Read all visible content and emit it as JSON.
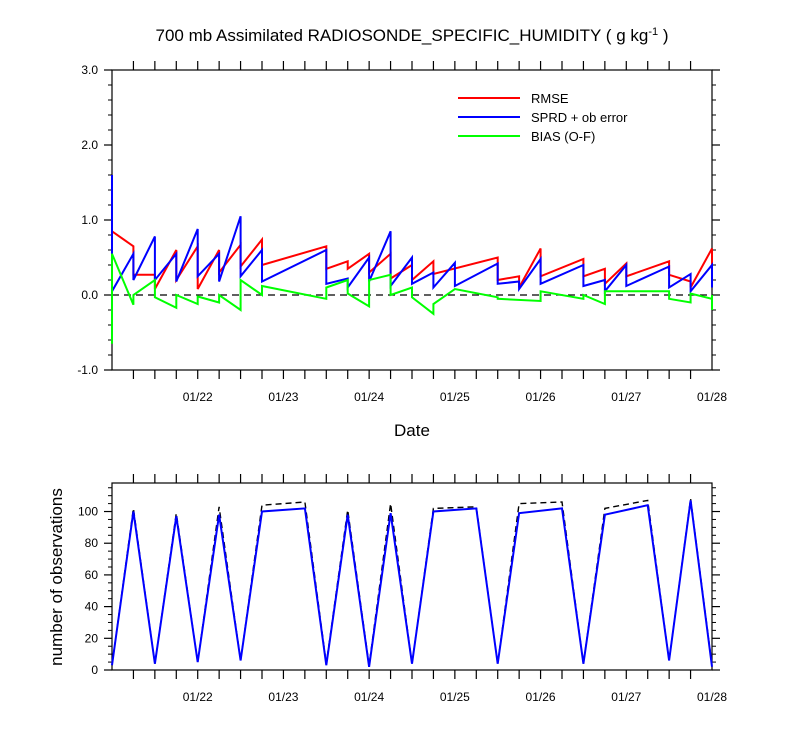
{
  "chart_data": [
    {
      "type": "line",
      "title_main": "700 mb Assimilated RADIOSONDE_SPECIFIC_HUMIDITY ( g kg",
      "title_sup": "-1",
      "title_end": " )",
      "xlabel": "Date",
      "ylabel": "",
      "x_tick_labels": [
        "01/22",
        "01/23",
        "01/24",
        "01/25",
        "01/26",
        "01/27",
        "01/28"
      ],
      "x_tick_days": [
        22,
        23,
        24,
        25,
        26,
        27,
        28
      ],
      "xlim": [
        21.0,
        28.0
      ],
      "ylim": [
        -1.0,
        3.0
      ],
      "y_ticks": [
        -1.0,
        0.0,
        1.0,
        2.0,
        3.0
      ],
      "y_tick_labels": [
        "-1.0",
        "0.0",
        "1.0",
        "2.0",
        "3.0"
      ],
      "zero_line": true,
      "legend_position": "top-right",
      "series": [
        {
          "name": "RMSE",
          "color": "#ff0000",
          "points": [
            [
              21.0,
              0.85
            ],
            [
              21.25,
              0.65
            ],
            [
              21.25,
              0.27
            ],
            [
              21.5,
              0.27
            ],
            [
              21.5,
              0.08
            ],
            [
              21.75,
              0.6
            ],
            [
              21.75,
              0.2
            ],
            [
              22.0,
              0.65
            ],
            [
              22.0,
              0.08
            ],
            [
              22.25,
              0.6
            ],
            [
              22.25,
              0.3
            ],
            [
              22.5,
              0.67
            ],
            [
              22.5,
              0.38
            ],
            [
              22.75,
              0.74
            ],
            [
              22.75,
              0.4
            ],
            [
              23.5,
              0.65
            ],
            [
              23.5,
              0.35
            ],
            [
              23.75,
              0.45
            ],
            [
              23.75,
              0.35
            ],
            [
              24.0,
              0.55
            ],
            [
              24.0,
              0.3
            ],
            [
              24.25,
              0.55
            ],
            [
              24.25,
              0.22
            ],
            [
              24.5,
              0.4
            ],
            [
              24.5,
              0.2
            ],
            [
              24.75,
              0.45
            ],
            [
              24.75,
              0.28
            ],
            [
              25.5,
              0.5
            ],
            [
              25.5,
              0.2
            ],
            [
              25.75,
              0.25
            ],
            [
              25.75,
              0.1
            ],
            [
              26.0,
              0.62
            ],
            [
              26.0,
              0.25
            ],
            [
              26.5,
              0.48
            ],
            [
              26.5,
              0.25
            ],
            [
              26.75,
              0.35
            ],
            [
              26.75,
              0.15
            ],
            [
              27.0,
              0.42
            ],
            [
              27.0,
              0.25
            ],
            [
              27.5,
              0.45
            ],
            [
              27.5,
              0.27
            ],
            [
              27.75,
              0.18
            ],
            [
              27.75,
              0.1
            ],
            [
              28.0,
              0.62
            ],
            [
              28.0,
              0.22
            ],
            [
              28.25,
              0.28
            ]
          ]
        },
        {
          "name": "SPRD + ob error",
          "color": "#0000ff",
          "points": [
            [
              21.0,
              1.6
            ],
            [
              21.0,
              0.05
            ],
            [
              21.25,
              0.55
            ],
            [
              21.25,
              0.2
            ],
            [
              21.5,
              0.78
            ],
            [
              21.5,
              0.2
            ],
            [
              21.75,
              0.55
            ],
            [
              21.75,
              0.18
            ],
            [
              22.0,
              0.88
            ],
            [
              22.0,
              0.25
            ],
            [
              22.25,
              0.55
            ],
            [
              22.25,
              0.18
            ],
            [
              22.5,
              1.05
            ],
            [
              22.5,
              0.25
            ],
            [
              22.75,
              0.6
            ],
            [
              22.75,
              0.18
            ],
            [
              23.5,
              0.6
            ],
            [
              23.5,
              0.15
            ],
            [
              23.75,
              0.22
            ],
            [
              23.75,
              0.1
            ],
            [
              24.0,
              0.5
            ],
            [
              24.0,
              0.18
            ],
            [
              24.25,
              0.85
            ],
            [
              24.25,
              0.12
            ],
            [
              24.5,
              0.5
            ],
            [
              24.5,
              0.15
            ],
            [
              24.75,
              0.3
            ],
            [
              24.75,
              0.1
            ],
            [
              25.0,
              0.43
            ],
            [
              25.0,
              0.12
            ],
            [
              25.5,
              0.42
            ],
            [
              25.5,
              0.15
            ],
            [
              25.75,
              0.18
            ],
            [
              25.75,
              0.08
            ],
            [
              26.0,
              0.48
            ],
            [
              26.0,
              0.15
            ],
            [
              26.5,
              0.4
            ],
            [
              26.5,
              0.12
            ],
            [
              26.75,
              0.2
            ],
            [
              26.75,
              0.05
            ],
            [
              27.0,
              0.4
            ],
            [
              27.0,
              0.12
            ],
            [
              27.5,
              0.38
            ],
            [
              27.5,
              0.1
            ],
            [
              27.75,
              0.28
            ],
            [
              27.75,
              0.05
            ],
            [
              28.0,
              0.4
            ],
            [
              28.0,
              0.1
            ],
            [
              28.25,
              0.15
            ]
          ]
        },
        {
          "name": "BIAS (O-F)",
          "color": "#00ff00",
          "points": [
            [
              21.0,
              -0.65
            ],
            [
              21.0,
              0.55
            ],
            [
              21.25,
              -0.13
            ],
            [
              21.25,
              0.0
            ],
            [
              21.5,
              0.2
            ],
            [
              21.5,
              -0.03
            ],
            [
              21.75,
              -0.17
            ],
            [
              21.75,
              0.0
            ],
            [
              22.0,
              -0.12
            ],
            [
              22.0,
              -0.02
            ],
            [
              22.25,
              -0.1
            ],
            [
              22.25,
              0.0
            ],
            [
              22.5,
              -0.2
            ],
            [
              22.5,
              0.2
            ],
            [
              22.75,
              0.0
            ],
            [
              22.75,
              0.12
            ],
            [
              23.5,
              -0.05
            ],
            [
              23.5,
              0.1
            ],
            [
              23.75,
              0.2
            ],
            [
              23.75,
              0.02
            ],
            [
              24.0,
              -0.15
            ],
            [
              24.0,
              0.2
            ],
            [
              24.25,
              0.27
            ],
            [
              24.25,
              0.0
            ],
            [
              24.5,
              0.1
            ],
            [
              24.5,
              -0.03
            ],
            [
              24.75,
              -0.25
            ],
            [
              24.75,
              -0.12
            ],
            [
              25.0,
              0.08
            ],
            [
              25.5,
              -0.03
            ],
            [
              25.5,
              -0.05
            ],
            [
              26.0,
              -0.08
            ],
            [
              26.0,
              0.05
            ],
            [
              26.5,
              -0.05
            ],
            [
              26.5,
              0.0
            ],
            [
              26.75,
              -0.12
            ],
            [
              26.75,
              0.05
            ],
            [
              27.5,
              0.05
            ],
            [
              27.5,
              -0.05
            ],
            [
              27.75,
              -0.1
            ],
            [
              27.75,
              0.02
            ],
            [
              28.0,
              -0.05
            ],
            [
              28.0,
              0.0
            ],
            [
              28.25,
              -0.2
            ]
          ]
        }
      ]
    },
    {
      "type": "line",
      "title": "",
      "xlabel": "",
      "ylabel": "number of observations",
      "x_tick_labels": [
        "01/22",
        "01/23",
        "01/24",
        "01/25",
        "01/26",
        "01/27",
        "01/28"
      ],
      "x_tick_days": [
        22,
        23,
        24,
        25,
        26,
        27,
        28
      ],
      "xlim": [
        21.0,
        28.0
      ],
      "ylim": [
        0,
        118
      ],
      "y_ticks": [
        0,
        20,
        40,
        60,
        80,
        100
      ],
      "y_tick_labels": [
        "0",
        "20",
        "40",
        "60",
        "80",
        "100"
      ],
      "series": [
        {
          "name": "",
          "color": "#000000",
          "dashed": true,
          "points": [
            [
              21.0,
              3
            ],
            [
              21.25,
              102
            ],
            [
              21.5,
              4
            ],
            [
              21.75,
              99
            ],
            [
              22.0,
              5
            ],
            [
              22.25,
              103
            ],
            [
              22.5,
              6
            ],
            [
              22.75,
              104
            ],
            [
              23.25,
              106
            ],
            [
              23.5,
              4
            ],
            [
              23.75,
              101
            ],
            [
              24.0,
              3
            ],
            [
              24.25,
              105
            ],
            [
              24.5,
              4
            ],
            [
              24.75,
              102
            ],
            [
              25.25,
              103
            ],
            [
              25.5,
              4
            ],
            [
              25.75,
              105
            ],
            [
              26.25,
              106
            ],
            [
              26.5,
              4
            ],
            [
              26.75,
              102
            ],
            [
              27.25,
              107
            ],
            [
              27.5,
              6
            ],
            [
              27.75,
              108
            ],
            [
              28.0,
              3
            ]
          ]
        },
        {
          "name": "",
          "color": "#0000ff",
          "points": [
            [
              21.0,
              3
            ],
            [
              21.25,
              100
            ],
            [
              21.5,
              4
            ],
            [
              21.75,
              97
            ],
            [
              22.0,
              5
            ],
            [
              22.25,
              98
            ],
            [
              22.5,
              6
            ],
            [
              22.75,
              100
            ],
            [
              23.25,
              102
            ],
            [
              23.5,
              3
            ],
            [
              23.75,
              98
            ],
            [
              24.0,
              2
            ],
            [
              24.25,
              99
            ],
            [
              24.5,
              4
            ],
            [
              24.75,
              100
            ],
            [
              25.25,
              102
            ],
            [
              25.5,
              4
            ],
            [
              25.75,
              99
            ],
            [
              26.25,
              102
            ],
            [
              26.5,
              4
            ],
            [
              26.75,
              98
            ],
            [
              27.25,
              104
            ],
            [
              27.5,
              6
            ],
            [
              27.75,
              107
            ],
            [
              28.0,
              2
            ]
          ]
        }
      ]
    }
  ]
}
